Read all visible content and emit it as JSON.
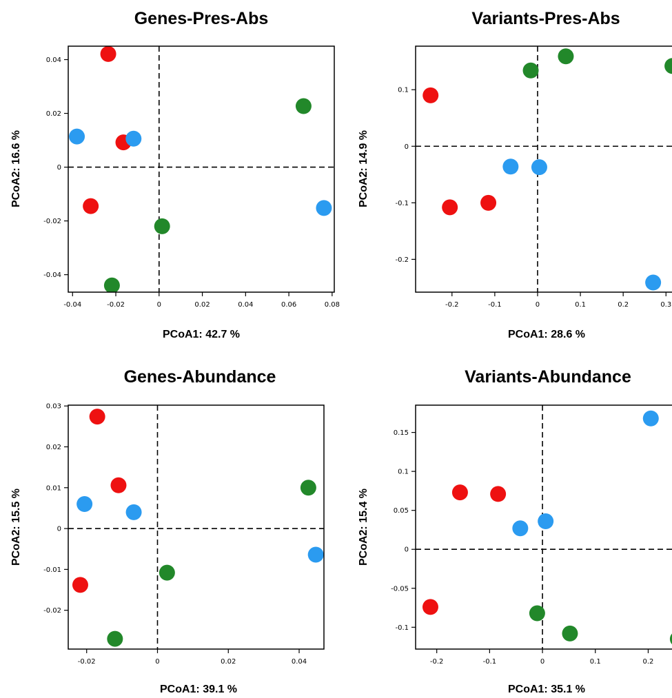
{
  "colors": {
    "red": "#ee1111",
    "green": "#22882a",
    "blue": "#2b9bf0"
  },
  "chart_data": [
    {
      "type": "scatter",
      "title": "Genes-Pres-Abs",
      "xlabel": "PCoA1: 42.7 %",
      "ylabel": "PCoA2: 16.6 %",
      "xlim": [
        -0.042,
        0.081
      ],
      "ylim": [
        -0.0465,
        0.045
      ],
      "xticks": [
        {
          "v": -0.04,
          "label": "-0.04"
        },
        {
          "v": -0.02,
          "label": "-0.02"
        },
        {
          "v": 0,
          "label": "0"
        },
        {
          "v": 0.02,
          "label": "0.02"
        },
        {
          "v": 0.04,
          "label": "0.04"
        },
        {
          "v": 0.06,
          "label": "0.06"
        },
        {
          "v": 0.08,
          "label": "0.08"
        }
      ],
      "yticks": [
        {
          "v": 0.04,
          "label": "0.04"
        },
        {
          "v": 0.02,
          "label": "0.02"
        },
        {
          "v": 0,
          "label": "0"
        },
        {
          "v": -0.02,
          "label": "-0.02"
        },
        {
          "v": -0.04,
          "label": "-0.04"
        }
      ],
      "points": [
        {
          "x": -0.0235,
          "y": 0.0421,
          "color": "red"
        },
        {
          "x": -0.0165,
          "y": 0.0092,
          "color": "red"
        },
        {
          "x": -0.0316,
          "y": -0.0145,
          "color": "red"
        },
        {
          "x": -0.038,
          "y": 0.0114,
          "color": "blue"
        },
        {
          "x": -0.0118,
          "y": 0.0106,
          "color": "blue"
        },
        {
          "x": 0.0762,
          "y": -0.0152,
          "color": "blue"
        },
        {
          "x": 0.0668,
          "y": 0.0227,
          "color": "green"
        },
        {
          "x": 0.0014,
          "y": -0.022,
          "color": "green"
        },
        {
          "x": -0.0218,
          "y": -0.044,
          "color": "green"
        }
      ]
    },
    {
      "type": "scatter",
      "title": "Variants-Pres-Abs",
      "xlabel": "PCoA1: 28.6 %",
      "ylabel": "PCoA2: 14.9 %",
      "xlim": [
        -0.285,
        0.335
      ],
      "ylim": [
        -0.258,
        0.177
      ],
      "xticks": [
        {
          "v": -0.2,
          "label": "-0.2"
        },
        {
          "v": -0.1,
          "label": "-0.1"
        },
        {
          "v": 0,
          "label": "0"
        },
        {
          "v": 0.1,
          "label": "0.1"
        },
        {
          "v": 0.2,
          "label": "0.2"
        },
        {
          "v": 0.3,
          "label": "0.3"
        }
      ],
      "yticks": [
        {
          "v": 0.1,
          "label": "0.1"
        },
        {
          "v": 0,
          "label": "0"
        },
        {
          "v": -0.1,
          "label": "-0.1"
        },
        {
          "v": -0.2,
          "label": "-0.2"
        }
      ],
      "points": [
        {
          "x": -0.25,
          "y": 0.09,
          "color": "red"
        },
        {
          "x": -0.205,
          "y": -0.108,
          "color": "red"
        },
        {
          "x": -0.115,
          "y": -0.1,
          "color": "red"
        },
        {
          "x": -0.063,
          "y": -0.036,
          "color": "blue"
        },
        {
          "x": 0.004,
          "y": -0.037,
          "color": "blue"
        },
        {
          "x": 0.27,
          "y": -0.241,
          "color": "blue"
        },
        {
          "x": -0.016,
          "y": 0.134,
          "color": "green"
        },
        {
          "x": 0.066,
          "y": 0.159,
          "color": "green"
        },
        {
          "x": 0.315,
          "y": 0.142,
          "color": "green"
        }
      ]
    },
    {
      "type": "scatter",
      "title": "Genes-Abundance",
      "xlabel": "PCoA1: 39.1 %",
      "ylabel": "PCoA2: 15.5 %",
      "xlim": [
        -0.0252,
        0.047
      ],
      "ylim": [
        -0.0295,
        0.0302
      ],
      "xticks": [
        {
          "v": -0.02,
          "label": "-0.02"
        },
        {
          "v": 0,
          "label": "0"
        },
        {
          "v": 0.02,
          "label": "0.02"
        },
        {
          "v": 0.04,
          "label": "0.04"
        }
      ],
      "yticks": [
        {
          "v": 0.03,
          "label": "0.03"
        },
        {
          "v": 0.02,
          "label": "0.02"
        },
        {
          "v": 0.01,
          "label": "0.01"
        },
        {
          "v": 0,
          "label": "0"
        },
        {
          "v": -0.01,
          "label": "-0.01"
        },
        {
          "v": -0.02,
          "label": "-0.02"
        }
      ],
      "points": [
        {
          "x": -0.017,
          "y": 0.0274,
          "color": "red"
        },
        {
          "x": -0.011,
          "y": 0.0106,
          "color": "red"
        },
        {
          "x": -0.0218,
          "y": -0.0138,
          "color": "red"
        },
        {
          "x": -0.0206,
          "y": 0.006,
          "color": "blue"
        },
        {
          "x": -0.0067,
          "y": 0.004,
          "color": "blue"
        },
        {
          "x": 0.0447,
          "y": -0.0064,
          "color": "blue"
        },
        {
          "x": 0.0426,
          "y": 0.01,
          "color": "green"
        },
        {
          "x": 0.0027,
          "y": -0.0108,
          "color": "green"
        },
        {
          "x": -0.012,
          "y": -0.027,
          "color": "green"
        }
      ]
    },
    {
      "type": "scatter",
      "title": "Variants-Abundance",
      "xlabel": "PCoA1: 35.1 %",
      "ylabel": "PCoA2: 15.4 %",
      "xlim": [
        -0.24,
        0.262
      ],
      "ylim": [
        -0.128,
        0.185
      ],
      "xticks": [
        {
          "v": -0.2,
          "label": "-0.2"
        },
        {
          "v": -0.1,
          "label": "-0.1"
        },
        {
          "v": 0,
          "label": "0"
        },
        {
          "v": 0.1,
          "label": "0.1"
        },
        {
          "v": 0.2,
          "label": "0.2"
        }
      ],
      "yticks": [
        {
          "v": 0.15,
          "label": "0.15"
        },
        {
          "v": 0.1,
          "label": "0.1"
        },
        {
          "v": 0.05,
          "label": "0.05"
        },
        {
          "v": 0,
          "label": "0"
        },
        {
          "v": -0.05,
          "label": "-0.05"
        },
        {
          "v": -0.1,
          "label": "-0.1"
        }
      ],
      "points": [
        {
          "x": -0.156,
          "y": 0.073,
          "color": "red"
        },
        {
          "x": -0.084,
          "y": 0.071,
          "color": "red"
        },
        {
          "x": -0.212,
          "y": -0.074,
          "color": "red"
        },
        {
          "x": -0.042,
          "y": 0.027,
          "color": "blue"
        },
        {
          "x": 0.006,
          "y": 0.036,
          "color": "blue"
        },
        {
          "x": 0.205,
          "y": 0.168,
          "color": "blue"
        },
        {
          "x": -0.01,
          "y": -0.082,
          "color": "green"
        },
        {
          "x": 0.052,
          "y": -0.108,
          "color": "green"
        },
        {
          "x": 0.256,
          "y": -0.115,
          "color": "green"
        }
      ]
    }
  ]
}
